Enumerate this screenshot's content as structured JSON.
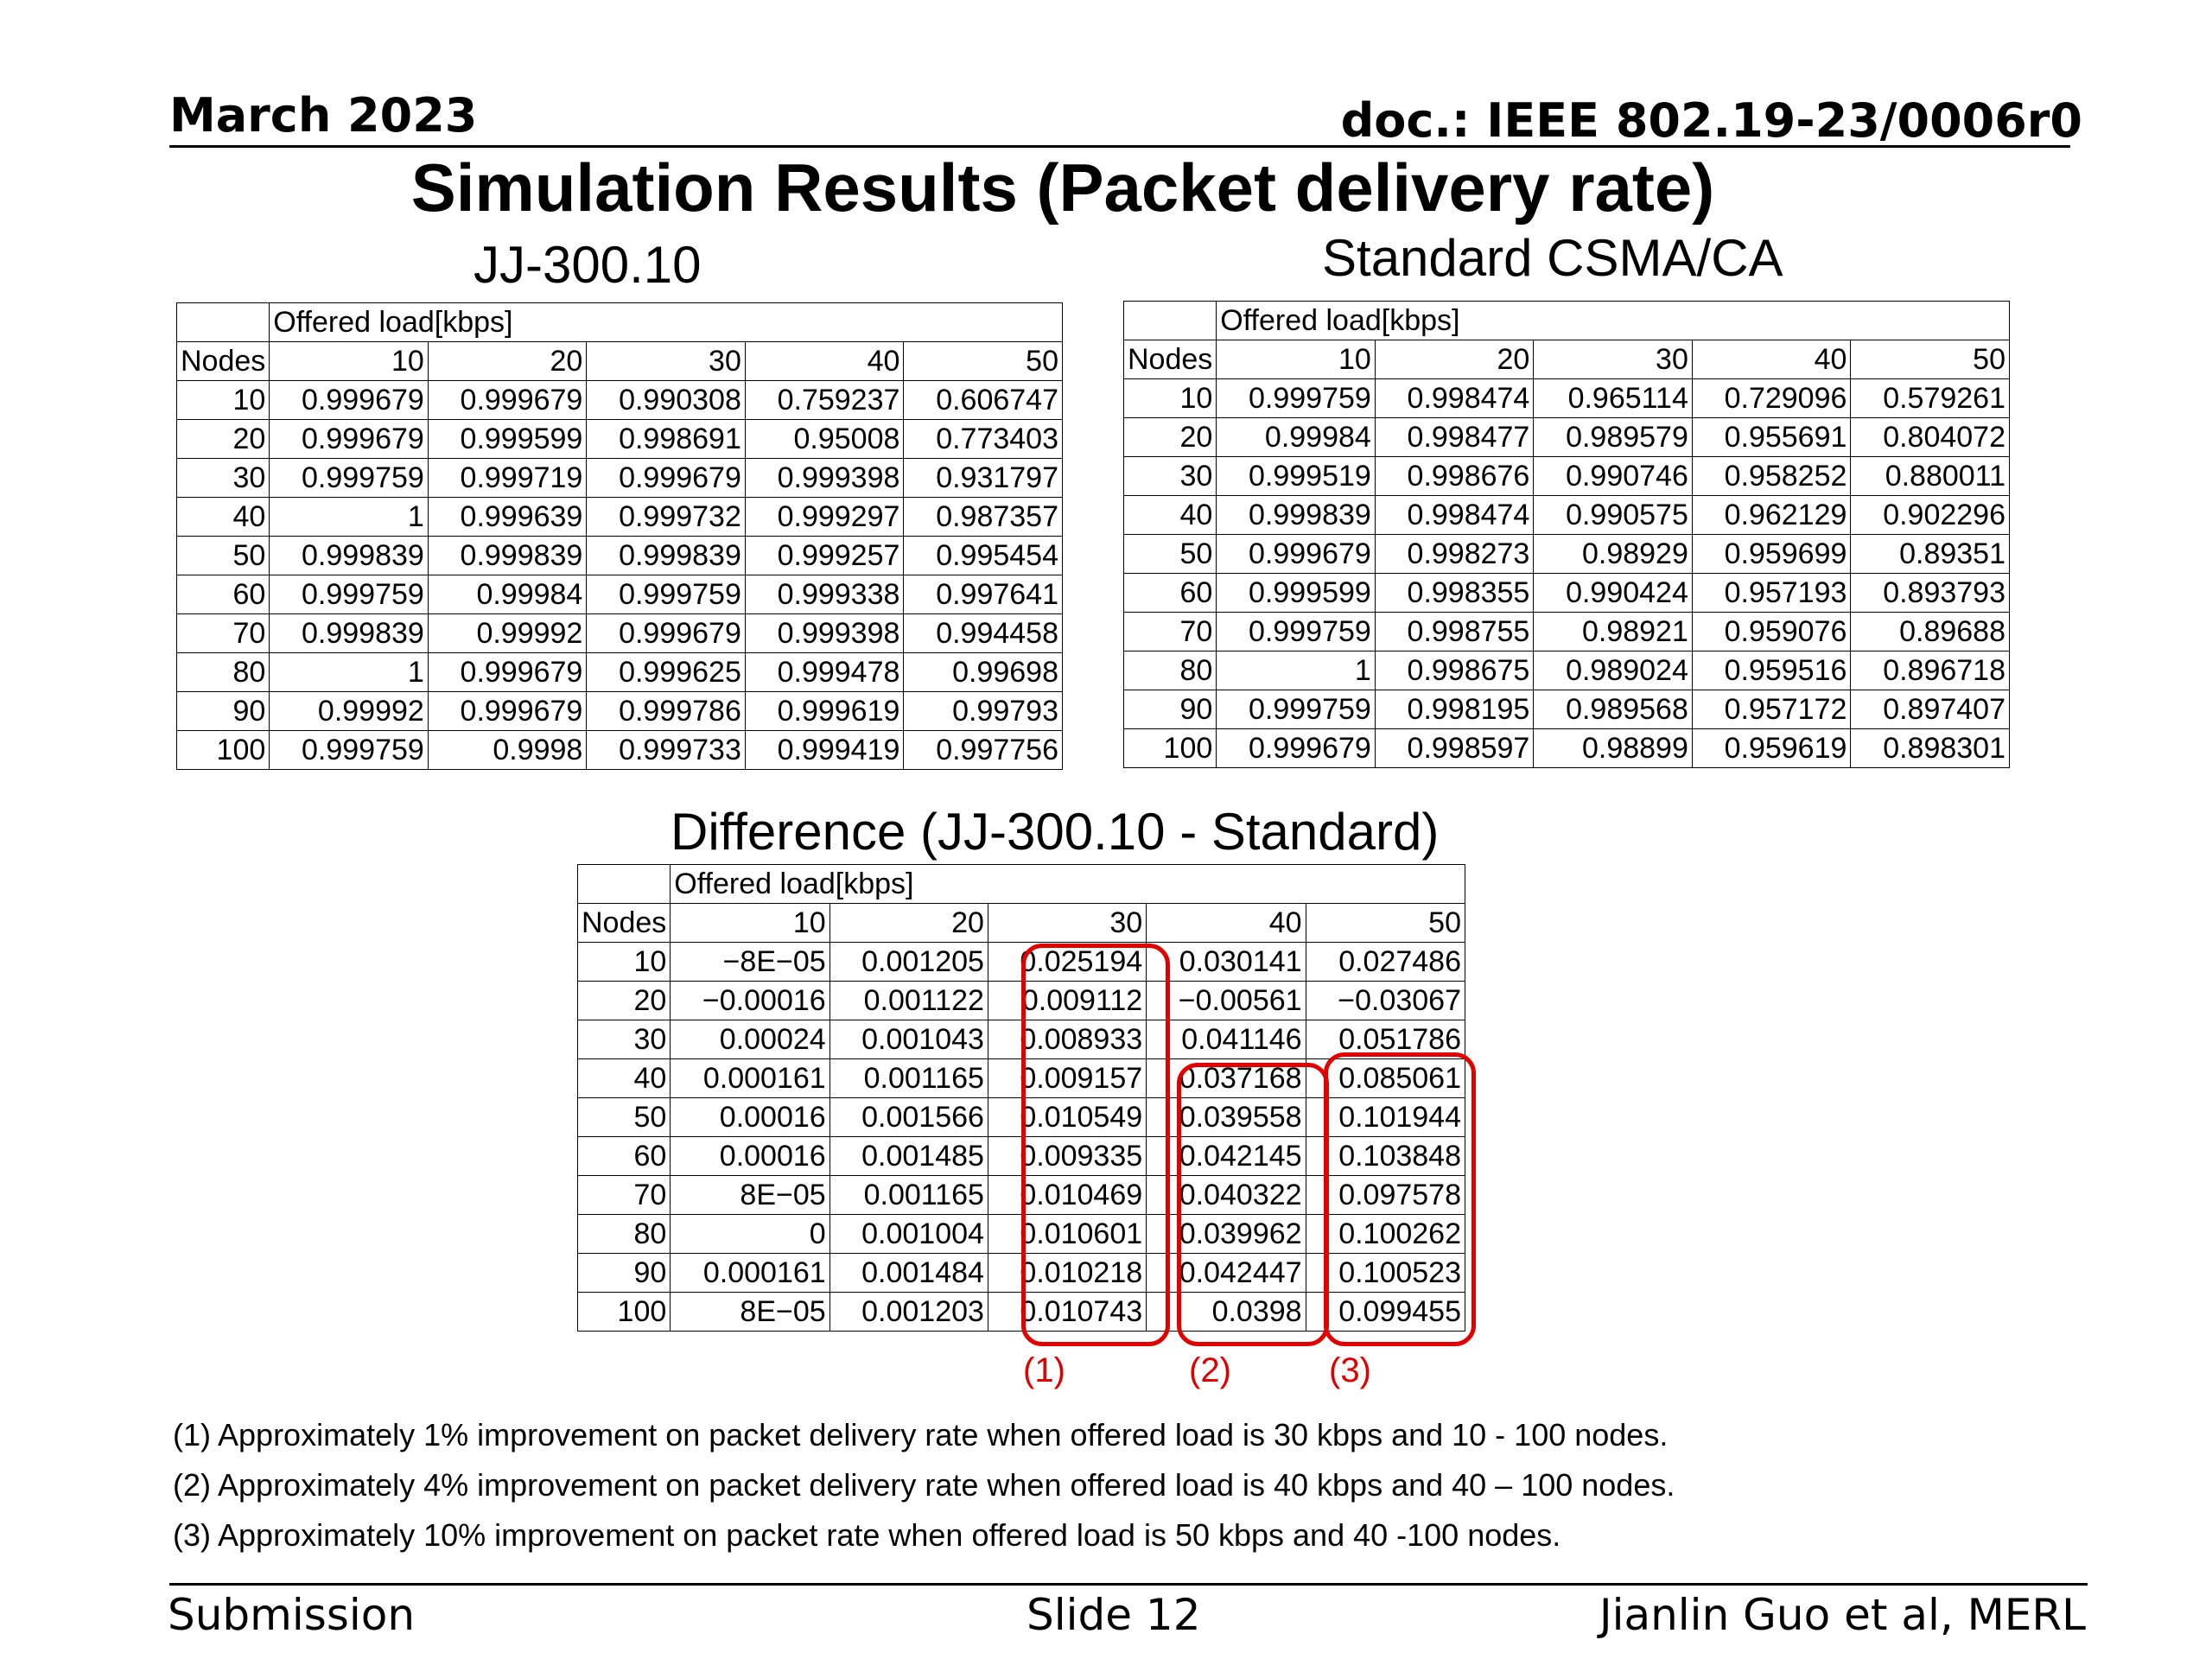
{
  "header": {
    "date": "March 2023",
    "doc": "doc.: IEEE 802.19-23/0006r0"
  },
  "title": "Simulation Results (Packet delivery rate)",
  "tables": {
    "jj": {
      "subtitle": "JJ-300.10",
      "load_label": "Offered load[kbps]",
      "nodes_label": "Nodes",
      "columns": [
        "10",
        "20",
        "30",
        "40",
        "50"
      ],
      "rows": [
        [
          "10",
          "0.999679",
          "0.999679",
          "0.990308",
          "0.759237",
          "0.606747"
        ],
        [
          "20",
          "0.999679",
          "0.999599",
          "0.998691",
          "0.95008",
          "0.773403"
        ],
        [
          "30",
          "0.999759",
          "0.999719",
          "0.999679",
          "0.999398",
          "0.931797"
        ],
        [
          "40",
          "1",
          "0.999639",
          "0.999732",
          "0.999297",
          "0.987357"
        ],
        [
          "50",
          "0.999839",
          "0.999839",
          "0.999839",
          "0.999257",
          "0.995454"
        ],
        [
          "60",
          "0.999759",
          "0.99984",
          "0.999759",
          "0.999338",
          "0.997641"
        ],
        [
          "70",
          "0.999839",
          "0.99992",
          "0.999679",
          "0.999398",
          "0.994458"
        ],
        [
          "80",
          "1",
          "0.999679",
          "0.999625",
          "0.999478",
          "0.99698"
        ],
        [
          "90",
          "0.99992",
          "0.999679",
          "0.999786",
          "0.999619",
          "0.99793"
        ],
        [
          "100",
          "0.999759",
          "0.9998",
          "0.999733",
          "0.999419",
          "0.997756"
        ]
      ]
    },
    "std": {
      "subtitle": "Standard CSMA/CA",
      "load_label": "Offered load[kbps]",
      "nodes_label": "Nodes",
      "columns": [
        "10",
        "20",
        "30",
        "40",
        "50"
      ],
      "rows": [
        [
          "10",
          "0.999759",
          "0.998474",
          "0.965114",
          "0.729096",
          "0.579261"
        ],
        [
          "20",
          "0.99984",
          "0.998477",
          "0.989579",
          "0.955691",
          "0.804072"
        ],
        [
          "30",
          "0.999519",
          "0.998676",
          "0.990746",
          "0.958252",
          "0.880011"
        ],
        [
          "40",
          "0.999839",
          "0.998474",
          "0.990575",
          "0.962129",
          "0.902296"
        ],
        [
          "50",
          "0.999679",
          "0.998273",
          "0.98929",
          "0.959699",
          "0.89351"
        ],
        [
          "60",
          "0.999599",
          "0.998355",
          "0.990424",
          "0.957193",
          "0.893793"
        ],
        [
          "70",
          "0.999759",
          "0.998755",
          "0.98921",
          "0.959076",
          "0.89688"
        ],
        [
          "80",
          "1",
          "0.998675",
          "0.989024",
          "0.959516",
          "0.896718"
        ],
        [
          "90",
          "0.999759",
          "0.998195",
          "0.989568",
          "0.957172",
          "0.897407"
        ],
        [
          "100",
          "0.999679",
          "0.998597",
          "0.98899",
          "0.959619",
          "0.898301"
        ]
      ]
    },
    "diff": {
      "subtitle": "Difference (JJ-300.10 - Standard)",
      "load_label": "Offered load[kbps]",
      "nodes_label": "Nodes",
      "columns": [
        "10",
        "20",
        "30",
        "40",
        "50"
      ],
      "rows": [
        [
          "10",
          "−8E−05",
          "0.001205",
          "0.025194",
          "0.030141",
          "0.027486"
        ],
        [
          "20",
          "−0.00016",
          "0.001122",
          "0.009112",
          "−0.00561",
          "−0.03067"
        ],
        [
          "30",
          "0.00024",
          "0.001043",
          "0.008933",
          "0.041146",
          "0.051786"
        ],
        [
          "40",
          "0.000161",
          "0.001165",
          "0.009157",
          "0.037168",
          "0.085061"
        ],
        [
          "50",
          "0.00016",
          "0.001566",
          "0.010549",
          "0.039558",
          "0.101944"
        ],
        [
          "60",
          "0.00016",
          "0.001485",
          "0.009335",
          "0.042145",
          "0.103848"
        ],
        [
          "70",
          "8E−05",
          "0.001165",
          "0.010469",
          "0.040322",
          "0.097578"
        ],
        [
          "80",
          "0",
          "0.001004",
          "0.010601",
          "0.039962",
          "0.100262"
        ],
        [
          "90",
          "0.000161",
          "0.001484",
          "0.010218",
          "0.042447",
          "0.100523"
        ],
        [
          "100",
          "8E−05",
          "0.001203",
          "0.010743",
          "0.0398",
          "0.099455"
        ]
      ]
    }
  },
  "highlights": [
    "(1)",
    "(2)",
    "(3)"
  ],
  "highlight_color": "#e00000",
  "notes": [
    "(1) Approximately 1% improvement on packet delivery rate when offered load is 30 kbps and 10 - 100 nodes.",
    "(2) Approximately 4% improvement on packet delivery rate when offered load is 40 kbps and 40 – 100 nodes.",
    "(3) Approximately 10% improvement on packet rate when offered load is 50 kbps and 40 -100 nodes."
  ],
  "footer": {
    "left": "Submission",
    "center": "Slide 12",
    "right": "Jianlin Guo et al, MERL"
  }
}
